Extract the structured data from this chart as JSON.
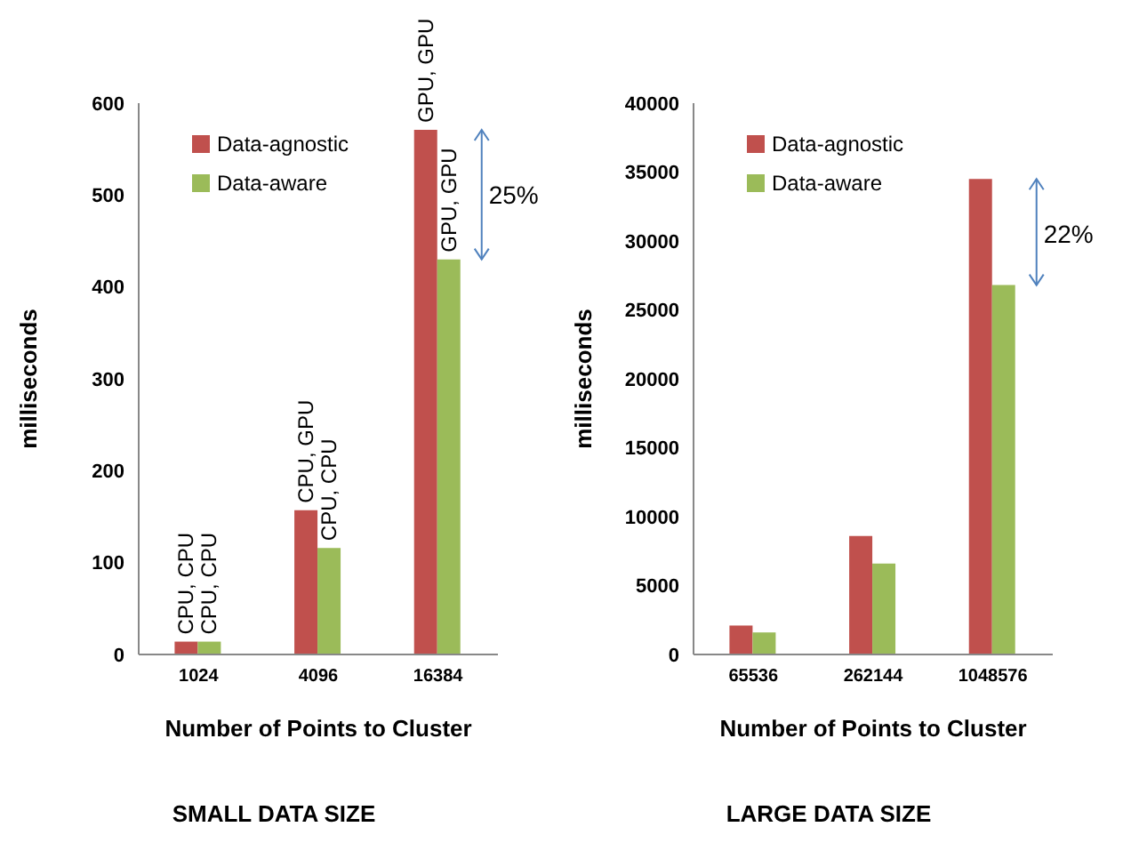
{
  "chart_data": [
    {
      "type": "bar",
      "title": "SMALL DATA SIZE",
      "xlabel": "Number of Points to Cluster",
      "ylabel": "milliseconds",
      "categories": [
        "1024",
        "4096",
        "16384"
      ],
      "series": [
        {
          "name": "Data-agnostic",
          "color": "#c0504d",
          "values": [
            14,
            157,
            571
          ],
          "value_labels": [
            "CPU, CPU",
            "CPU, GPU",
            "GPU, GPU"
          ]
        },
        {
          "name": "Data-aware",
          "color": "#9bbb59",
          "values": [
            14,
            116,
            430
          ],
          "value_labels": [
            "CPU, CPU",
            "CPU, CPU",
            "GPU, GPU"
          ]
        }
      ],
      "ylim": [
        0,
        600
      ],
      "yticks": [
        0,
        100,
        200,
        300,
        400,
        500,
        600
      ],
      "grid": false,
      "legend": "top left",
      "annotations": [
        {
          "text": "25%",
          "x": "16384",
          "y": 500
        }
      ]
    },
    {
      "type": "bar",
      "title": "LARGE DATA SIZE",
      "xlabel": "Number of Points to Cluster",
      "ylabel": "milliseconds",
      "categories": [
        "65536",
        "262144",
        "1048576"
      ],
      "series": [
        {
          "name": "Data-agnostic",
          "color": "#c0504d",
          "values": [
            2100,
            8600,
            34500
          ]
        },
        {
          "name": "Data-aware",
          "color": "#9bbb59",
          "values": [
            1600,
            6600,
            26800
          ]
        }
      ],
      "ylim": [
        0,
        40000
      ],
      "yticks": [
        0,
        5000,
        10000,
        15000,
        20000,
        25000,
        30000,
        35000,
        40000
      ],
      "grid": false,
      "legend": "top left",
      "annotations": [
        {
          "text": "22%",
          "x": "1048576",
          "y": 30500
        }
      ]
    }
  ]
}
